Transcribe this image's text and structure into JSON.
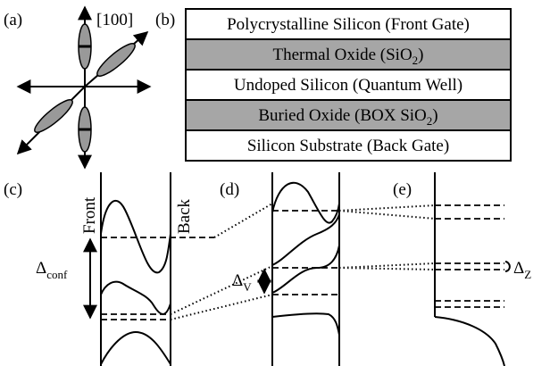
{
  "panel_a": {
    "label": "(a)",
    "direction": "[100]"
  },
  "panel_b": {
    "label": "(b)",
    "layers": [
      {
        "text": "Polycrystalline Silicon (Front Gate)"
      },
      {
        "text": "Thermal Oxide (SiO",
        "sub": "2",
        "tail": ")"
      },
      {
        "text": "Undoped Silicon (Quantum Well)"
      },
      {
        "text": "Buried Oxide (BOX SiO",
        "sub": "2",
        "tail": ")"
      },
      {
        "text": "Silicon Substrate (Back Gate)"
      }
    ]
  },
  "panel_c": {
    "label": "(c)",
    "front": "Front",
    "back": "Back",
    "gap": {
      "symbol": "Δ",
      "sub": "conf"
    }
  },
  "panel_d": {
    "label": "(d)",
    "gap": {
      "symbol": "Δ",
      "sub": "V"
    }
  },
  "panel_e": {
    "label": "(e)",
    "gap": {
      "symbol": "Δ",
      "sub": "Z"
    }
  }
}
